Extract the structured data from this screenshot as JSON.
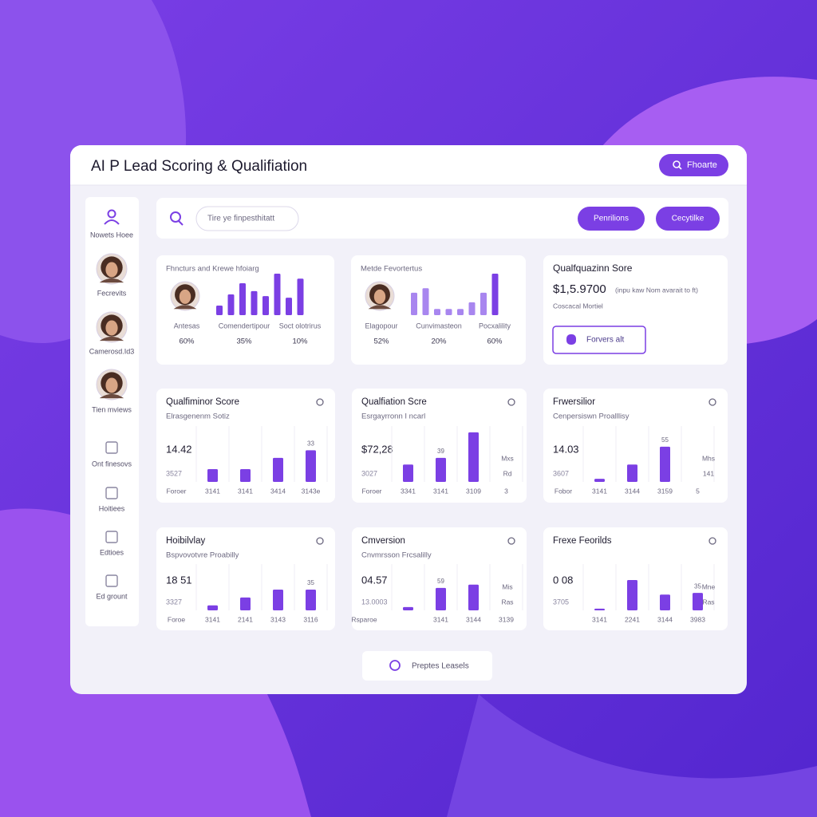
{
  "header": {
    "title": "AI P Lead Scoring & Qualifiation",
    "button": "Fhoarte"
  },
  "sidebar": [
    "Nowets Hoee",
    "Fecrevits",
    "Camerosd.Id3",
    "Tien mviews",
    "Ont finesovs",
    "Hoitiees",
    "Edtioes",
    "Ed grount"
  ],
  "toolbar": {
    "search_placeholder": "Tire ye finpesthitatt",
    "buttons": [
      "Penrilions",
      "Cecytilke"
    ]
  },
  "summary_cards": [
    {
      "title": "Fhncturs and Krewe hfoiarg",
      "labels": [
        "Antesas",
        "Comendertipour",
        "Soct olotrirus"
      ],
      "percents": [
        "60%",
        "35%",
        "10%"
      ],
      "ylim": [
        0,
        100
      ],
      "bars": [
        23,
        50,
        77,
        58,
        46,
        100,
        42,
        88
      ]
    },
    {
      "title": "Metde Fevortertus",
      "labels": [
        "Elagopour",
        "Cunvimasteon",
        "Pocxalility"
      ],
      "percents": [
        "52%",
        "20%",
        "60%"
      ],
      "ylim": [
        0,
        100
      ],
      "bars": [
        54,
        65,
        15,
        15,
        15,
        31,
        54,
        100
      ]
    }
  ],
  "score_card": {
    "title": "Qualfquazinn Sore",
    "value": "$1,5.9700",
    "note": "(inpu kaw Nom avarait to ft)",
    "caption": "Coscacal Mortiel",
    "button": "Forvers alt"
  },
  "chart_cards": [
    {
      "title": "Qualfiminor Score",
      "subtitle": "Elrasgenenm Sotiz",
      "value": "14.42",
      "subvalue": "3527",
      "ylim": [
        0,
        100
      ],
      "bars": [
        25,
        25,
        47,
        62
      ],
      "bar_notes": [
        null,
        null,
        null,
        "33"
      ],
      "x_labels": [
        "Foroer",
        "3141",
        "3141",
        "3414",
        "3143e"
      ],
      "side_labels": []
    },
    {
      "title": "Qualfiation Scre",
      "subtitle": "Esrgayrronn I ncarl",
      "value": "$72,28",
      "subvalue": "3027",
      "ylim": [
        0,
        100
      ],
      "bars": [
        34,
        47,
        97
      ],
      "bar_notes": [
        null,
        "39",
        null
      ],
      "x_labels": [
        "Foroer",
        "3341",
        "3141",
        "3109",
        "3"
      ],
      "side_labels": [
        "Mxs",
        "Rd"
      ]
    },
    {
      "title": "Frwersilior",
      "subtitle": "Cenpersiswn Proalllisy",
      "value": "14.03",
      "subvalue": "3607",
      "ylim": [
        0,
        100
      ],
      "bars": [
        6,
        34,
        69
      ],
      "bar_notes": [
        null,
        null,
        "55"
      ],
      "x_labels": [
        "Fobor",
        "3141",
        "3144",
        "3159",
        "5"
      ],
      "side_labels": [
        "Mhs",
        "141"
      ]
    },
    {
      "title": "Hoibilvlay",
      "subtitle": "Bspvovotvre Proabilly",
      "value": "18 51",
      "subvalue": "3327",
      "ylim": [
        0,
        100
      ],
      "bars": [
        12,
        31,
        50,
        50
      ],
      "bar_notes": [
        null,
        null,
        null,
        "35"
      ],
      "x_labels": [
        "Foroe",
        "3141",
        "2141",
        "3143",
        "3116"
      ],
      "side_labels": []
    },
    {
      "title": "Cmversion",
      "subtitle": "Cnvmrsson Frcsalilly",
      "value": "04.57",
      "subvalue": "13.0003",
      "ylim": [
        0,
        100
      ],
      "bars": [
        8,
        54,
        62
      ],
      "bar_notes": [
        null,
        "59",
        null
      ],
      "x_labels": [
        "Rsparoe",
        "3141",
        "3144",
        "3139"
      ],
      "side_labels": [
        "Mis",
        "Ras"
      ]
    },
    {
      "title": "Frexe Feorilds",
      "value": "0 08",
      "subvalue": "3705",
      "ylim": [
        0,
        100
      ],
      "bars": [
        4,
        73,
        38,
        42
      ],
      "bar_notes": [
        null,
        null,
        null,
        "35"
      ],
      "x_labels": [
        "3141",
        "2241",
        "3144",
        "3983"
      ],
      "side_labels": [
        "Mne",
        "Ras"
      ]
    }
  ],
  "footer_button": "Preptes Leasels"
}
